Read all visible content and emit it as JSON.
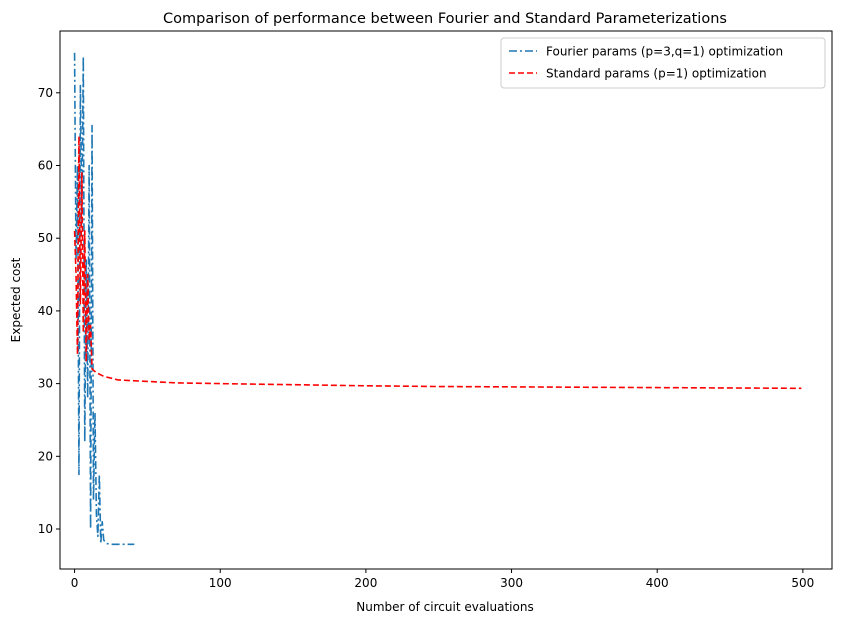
{
  "chart_data": {
    "type": "line",
    "title": "Comparison of performance between Fourier and Standard Parameterizations",
    "xlabel": "Number of circuit evaluations",
    "ylabel": "Expected cost",
    "xlim": [
      -10,
      520
    ],
    "ylim": [
      4.5,
      78.5
    ],
    "xticks": [
      0,
      100,
      200,
      300,
      400,
      500
    ],
    "yticks": [
      10,
      20,
      30,
      40,
      50,
      60,
      70
    ],
    "grid": false,
    "legend_position": "top-right",
    "series": [
      {
        "name": "Fourier params (p=3,q=1) optimization",
        "color": "#1f77b4",
        "style": "dashdot",
        "x": [
          0,
          1,
          2,
          3,
          4,
          5,
          6,
          7,
          8,
          9,
          10,
          11,
          12,
          13,
          14,
          15,
          16,
          17,
          18,
          19,
          20,
          21,
          22,
          25,
          30,
          35,
          41
        ],
        "y": [
          75.5,
          47,
          60,
          17.5,
          71,
          52,
          75,
          22,
          47,
          28,
          60,
          10,
          65.5,
          14,
          26,
          12,
          9,
          17.5,
          8,
          11,
          8.5,
          8.2,
          8.0,
          7.9,
          7.9,
          7.9,
          7.9
        ]
      },
      {
        "name": "Standard params (p=1) optimization",
        "color": "#ff0000",
        "style": "dashed",
        "x": [
          0,
          1,
          2,
          3,
          4,
          5,
          6,
          7,
          8,
          9,
          10,
          11,
          12,
          15,
          20,
          30,
          40,
          70,
          100,
          150,
          200,
          250,
          300,
          350,
          400,
          450,
          499
        ],
        "y": [
          51,
          45,
          34,
          64,
          41,
          59,
          37,
          51,
          33,
          45,
          36,
          38,
          32,
          31.5,
          31.0,
          30.5,
          30.4,
          30.1,
          30.0,
          29.85,
          29.7,
          29.6,
          29.55,
          29.5,
          29.45,
          29.4,
          29.35
        ]
      }
    ]
  }
}
